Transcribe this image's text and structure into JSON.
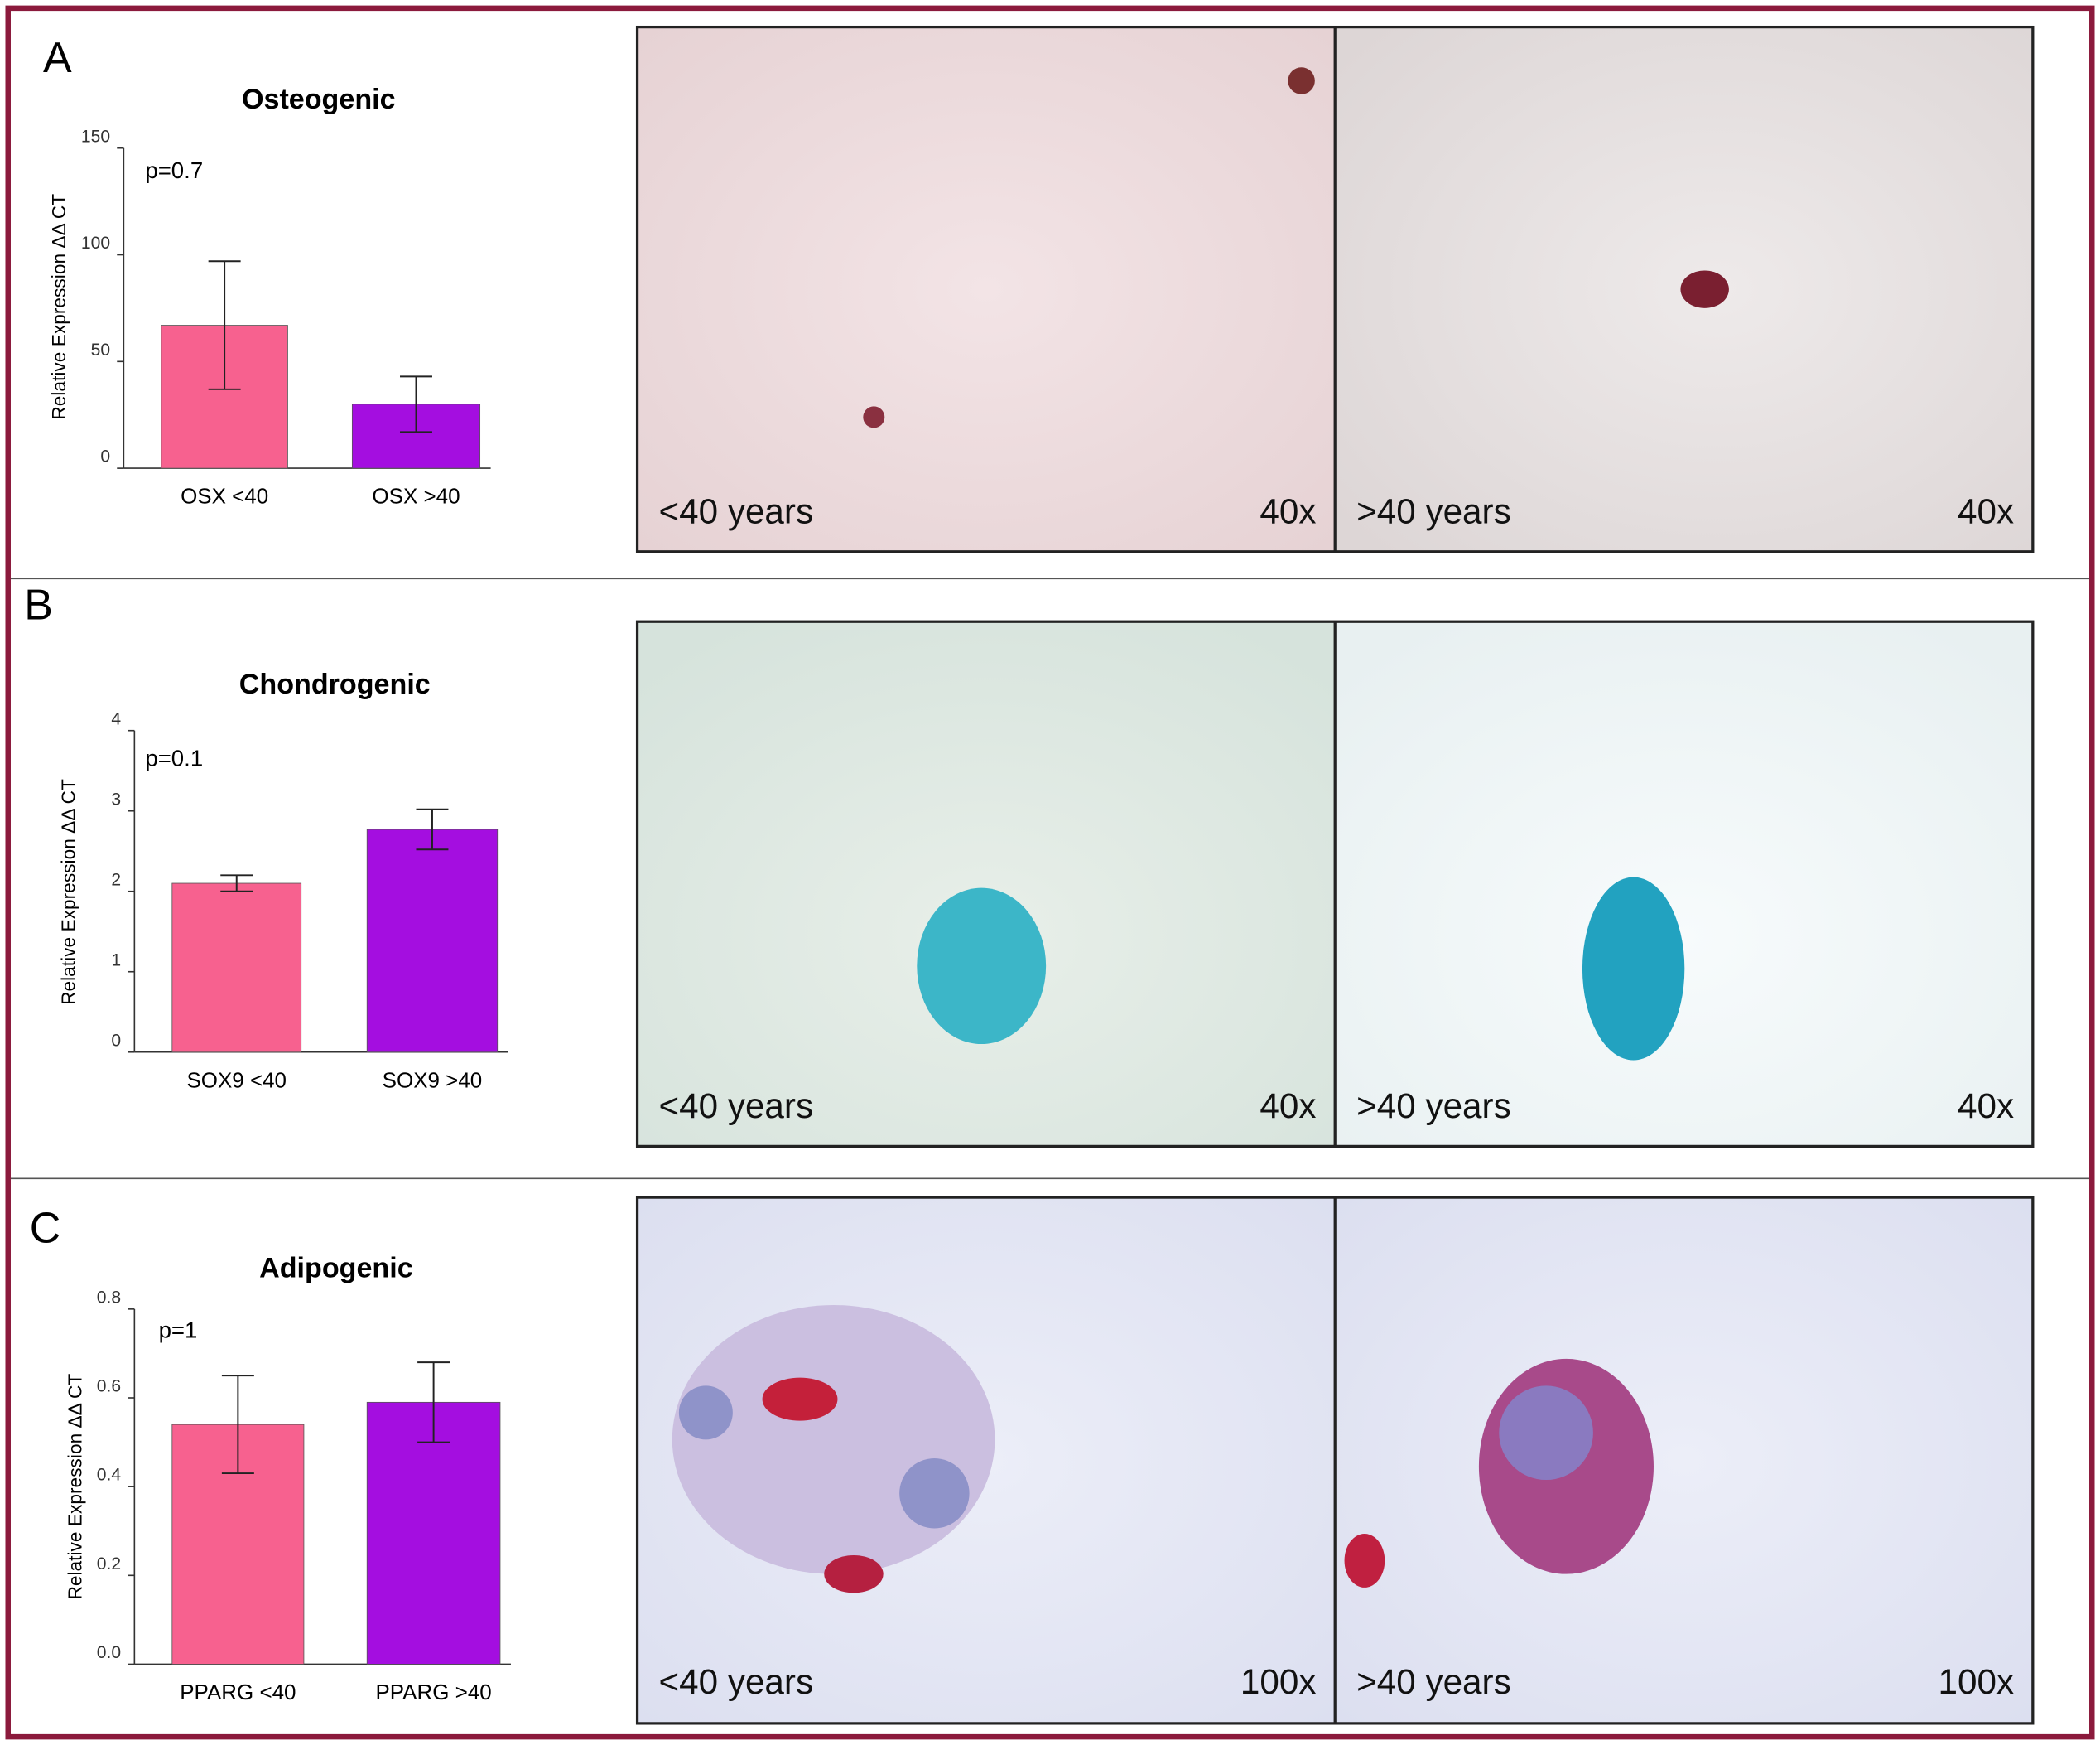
{
  "panels": [
    {
      "label": "A",
      "images": [
        {
          "caption": "<40 years",
          "magnification": "40x"
        },
        {
          "caption": ">40 years",
          "magnification": "40x"
        }
      ]
    },
    {
      "label": "B",
      "images": [
        {
          "caption": "<40 years",
          "magnification": "40x"
        },
        {
          "caption": ">40 years",
          "magnification": "40x"
        }
      ]
    },
    {
      "label": "C",
      "images": [
        {
          "caption": "<40 years",
          "magnification": "100x"
        },
        {
          "caption": ">40 years",
          "magnification": "100x"
        }
      ]
    }
  ],
  "chart_data": [
    {
      "type": "bar",
      "title": "Osteogenic",
      "annotation": "p=0.7",
      "y_label": "Relative Expression ΔΔ CT",
      "categories": [
        "OSX <40",
        "OSX >40"
      ],
      "values": [
        67,
        30
      ],
      "errors": [
        30,
        13
      ],
      "colors": [
        "#f7618f",
        "#a40ee0"
      ],
      "ylim": [
        0,
        150
      ],
      "yticks": [
        0,
        50,
        100,
        150
      ]
    },
    {
      "type": "bar",
      "title": "Chondrogenic",
      "annotation": "p=0.1",
      "y_label": "Relative Expression ΔΔ CT",
      "categories": [
        "SOX9 <40",
        "SOX9 >40"
      ],
      "values": [
        2.1,
        2.77
      ],
      "errors": [
        0.1,
        0.25
      ],
      "colors": [
        "#f7618f",
        "#a40ee0"
      ],
      "ylim": [
        0,
        4
      ],
      "yticks": [
        0,
        1,
        2,
        3,
        4
      ]
    },
    {
      "type": "bar",
      "title": "Adipogenic",
      "annotation": "p=1",
      "y_label": "Relative Expression ΔΔ CT",
      "categories": [
        "PPARG <40",
        "PPARG >40"
      ],
      "values": [
        0.54,
        0.59
      ],
      "errors": [
        0.11,
        0.09
      ],
      "colors": [
        "#f7618f",
        "#a40ee0"
      ],
      "ylim": [
        0,
        0.8
      ],
      "yticks": [
        {
          "value": 0,
          "label": "0.0"
        },
        0.2,
        0.4,
        0.6,
        0.8
      ]
    }
  ]
}
